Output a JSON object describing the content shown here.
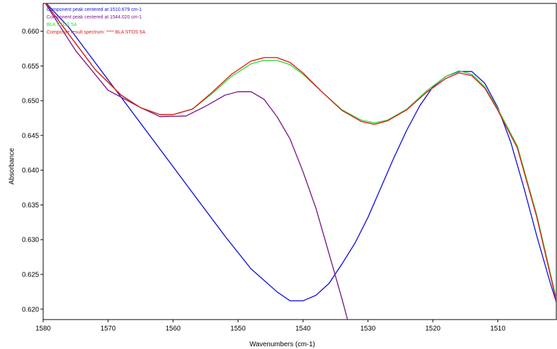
{
  "chart_data": {
    "type": "line",
    "xlabel": "Wavenumbers (cm-1)",
    "ylabel": "Absorbance",
    "xlim": [
      1580,
      1501
    ],
    "ylim": [
      0.6185,
      0.664
    ],
    "x_reversed": true,
    "grid": false,
    "legend_position": "top-left",
    "x_ticks": [
      "1580",
      "1570",
      "1560",
      "1550",
      "1540",
      "1530",
      "1520",
      "1510"
    ],
    "y_ticks": [
      "0.620",
      "0.625",
      "0.630",
      "0.635",
      "0.640",
      "0.645",
      "0.650",
      "0.655",
      "0.660"
    ],
    "series": [
      {
        "name": "Component peak centered at 1510.679 cm-1",
        "color": "#1515d8",
        "x": [
          1580,
          1576,
          1572,
          1568,
          1564,
          1560,
          1556,
          1552,
          1548,
          1544,
          1542,
          1540,
          1538,
          1536,
          1534,
          1532,
          1530,
          1528,
          1526,
          1524,
          1522,
          1520,
          1518,
          1516,
          1514,
          1512,
          1510,
          1508,
          1506,
          1504,
          1502,
          1501
        ],
        "y": [
          0.6645,
          0.6605,
          0.6555,
          0.6505,
          0.6455,
          0.6405,
          0.6355,
          0.6305,
          0.6258,
          0.6225,
          0.6212,
          0.6212,
          0.622,
          0.6237,
          0.6265,
          0.6295,
          0.6332,
          0.6375,
          0.6418,
          0.6458,
          0.6493,
          0.652,
          0.6535,
          0.6542,
          0.6542,
          0.6525,
          0.649,
          0.644,
          0.6375,
          0.6305,
          0.624,
          0.621
        ]
      },
      {
        "name": "Component peak centered at 1544.020 cm-1",
        "color": "#7b1a8a",
        "x": [
          1580,
          1575,
          1570,
          1565,
          1562,
          1558,
          1555,
          1552,
          1550,
          1548,
          1546,
          1544,
          1542,
          1540,
          1538,
          1536,
          1534,
          1533
        ],
        "y": [
          0.6645,
          0.6572,
          0.6515,
          0.649,
          0.6477,
          0.6478,
          0.6492,
          0.6508,
          0.6513,
          0.6513,
          0.6502,
          0.6477,
          0.6445,
          0.6398,
          0.6345,
          0.628,
          0.6215,
          0.618
        ]
      },
      {
        "name": "BLA STOS 5A",
        "color": "#33dd33",
        "x": [
          1580,
          1576,
          1572,
          1568,
          1565,
          1562,
          1560,
          1557,
          1554,
          1551,
          1548,
          1546,
          1544,
          1542,
          1540,
          1537,
          1534,
          1531,
          1529,
          1527,
          1524,
          1521,
          1518,
          1516,
          1514,
          1512,
          1510,
          1507,
          1504,
          1501
        ],
        "y": [
          0.6645,
          0.6595,
          0.6545,
          0.6508,
          0.649,
          0.648,
          0.648,
          0.6488,
          0.651,
          0.6535,
          0.6553,
          0.6558,
          0.6558,
          0.6552,
          0.6538,
          0.6512,
          0.6487,
          0.6472,
          0.6468,
          0.6472,
          0.6488,
          0.6514,
          0.6535,
          0.6543,
          0.6538,
          0.652,
          0.6488,
          0.6435,
          0.6335,
          0.6215
        ]
      },
      {
        "name": "Composite result spectrum: **** BLA STOS 5A",
        "color": "#dd1a1a",
        "x": [
          1580,
          1576,
          1572,
          1568,
          1565,
          1562,
          1560,
          1557,
          1554,
          1551,
          1548,
          1546,
          1544,
          1542,
          1540,
          1537,
          1534,
          1531,
          1529,
          1527,
          1524,
          1521,
          1518,
          1516,
          1514,
          1512,
          1510,
          1507,
          1504,
          1501
        ],
        "y": [
          0.6645,
          0.6595,
          0.6545,
          0.6508,
          0.649,
          0.648,
          0.648,
          0.6488,
          0.6512,
          0.6538,
          0.6557,
          0.6562,
          0.6562,
          0.6555,
          0.654,
          0.6512,
          0.6486,
          0.647,
          0.6466,
          0.6471,
          0.6487,
          0.6512,
          0.6532,
          0.654,
          0.6536,
          0.6518,
          0.6486,
          0.6432,
          0.6332,
          0.6212
        ]
      }
    ]
  }
}
